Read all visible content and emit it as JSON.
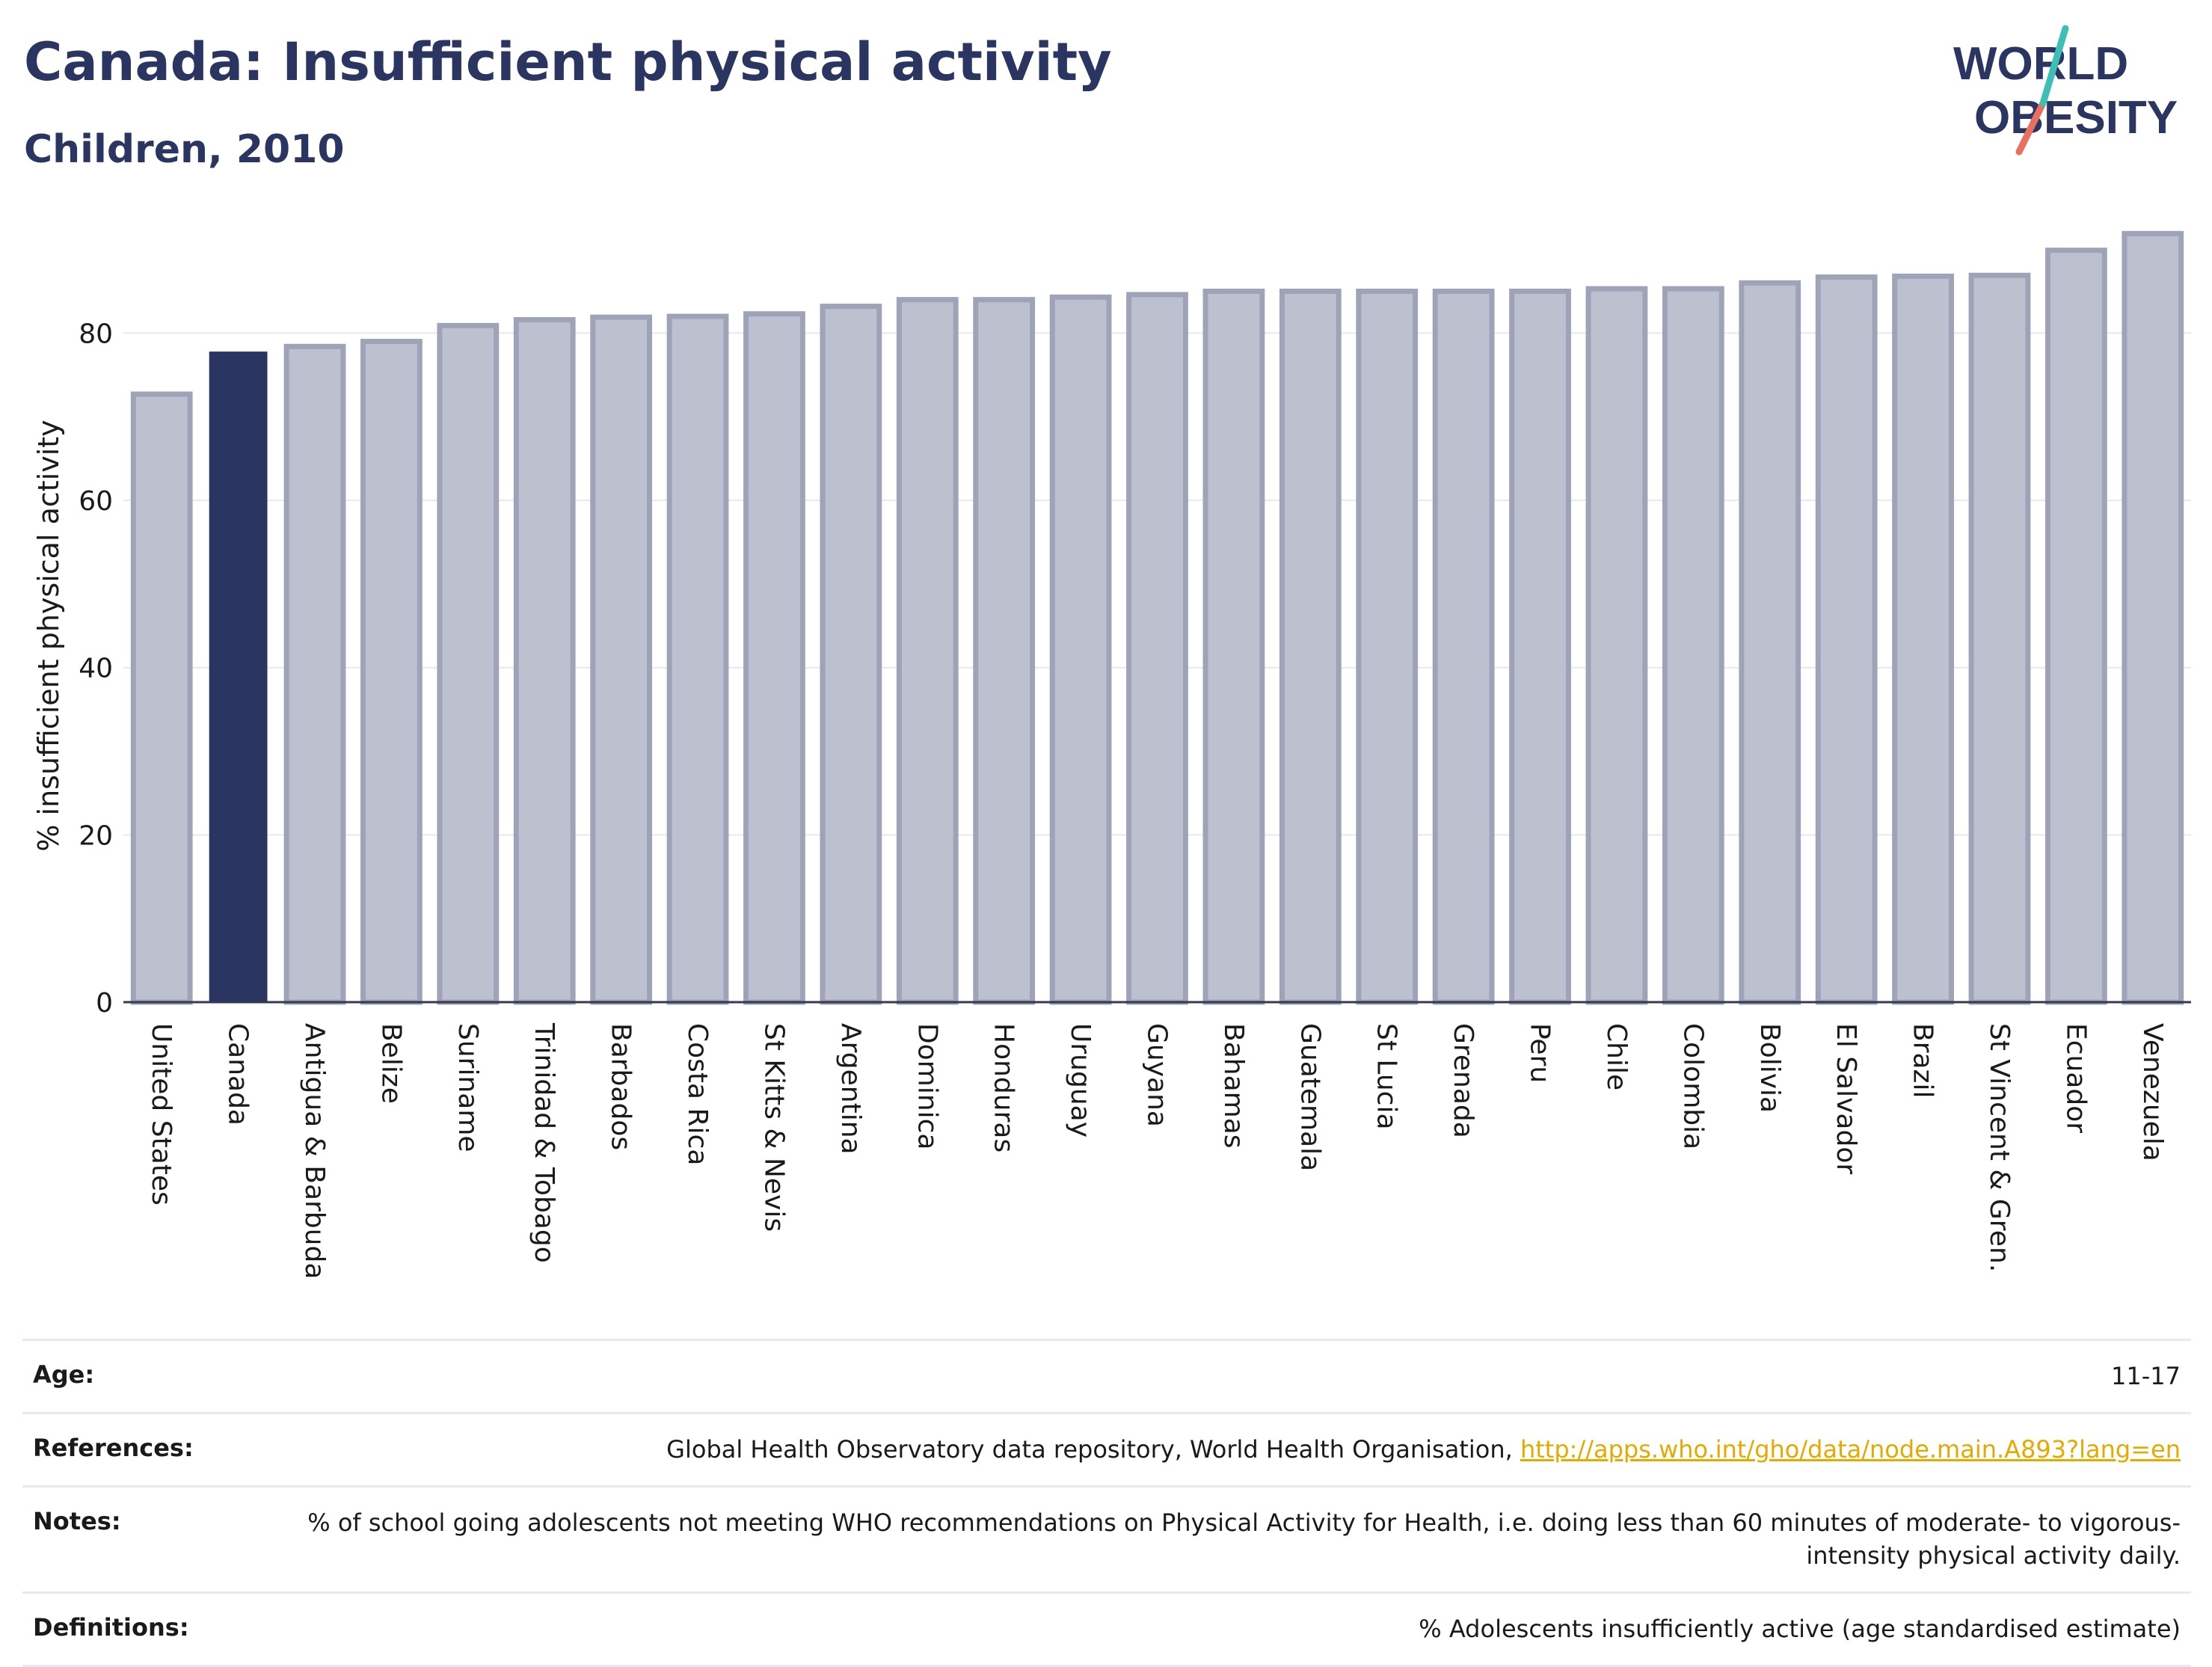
{
  "header": {
    "title": "Canada: Insufficient physical activity",
    "subtitle": "Children, 2010"
  },
  "logo": {
    "line1": "WORLD",
    "line2": "OBESITY"
  },
  "chart_data": {
    "type": "bar",
    "ylabel": "% insufficient physical activity",
    "ylim": [
      0,
      93
    ],
    "yticks": [
      0,
      20,
      40,
      60,
      80
    ],
    "grid": true,
    "highlight": "Canada",
    "colors": {
      "highlight": "#2b3562",
      "bar": "#bdc1cf",
      "bar_border": "#9ea3b8"
    },
    "categories": [
      "United States",
      "Canada",
      "Antigua & Barbuda",
      "Belize",
      "Suriname",
      "Trinidad & Tobago",
      "Barbados",
      "Costa Rica",
      "St Kitts & Nevis",
      "Argentina",
      "Dominica",
      "Honduras",
      "Uruguay",
      "Guyana",
      "Bahamas",
      "Guatemala",
      "St Lucia",
      "Grenada",
      "Peru",
      "Chile",
      "Colombia",
      "Bolivia",
      "El Salvador",
      "Brazil",
      "St Vincent & Gren.",
      "Ecuador",
      "Venezuela"
    ],
    "values": [
      72.7,
      77.7,
      78.4,
      79.0,
      80.9,
      81.6,
      81.9,
      82.0,
      82.3,
      83.2,
      84.0,
      84.0,
      84.3,
      84.6,
      85.0,
      85.0,
      85.0,
      85.0,
      85.0,
      85.3,
      85.3,
      86.0,
      86.7,
      86.8,
      86.9,
      89.9,
      91.9
    ]
  },
  "footer": {
    "age_label": "Age:",
    "age_value": "11-17",
    "references_label": "References:",
    "references_text": "Global Health Observatory data repository, World Health Organisation,",
    "references_link": "http://apps.who.int/gho/data/node.main.A893?lang=en",
    "notes_label": "Notes:",
    "notes_value": "% of school going adolescents not meeting WHO recommendations on Physical Activity for Health, i.e. doing less than 60 minutes of moderate- to vigorous-intensity physical activity daily.",
    "definitions_label": "Definitions:",
    "definitions_value": "% Adolescents insufficiently active (age standardised estimate)"
  }
}
